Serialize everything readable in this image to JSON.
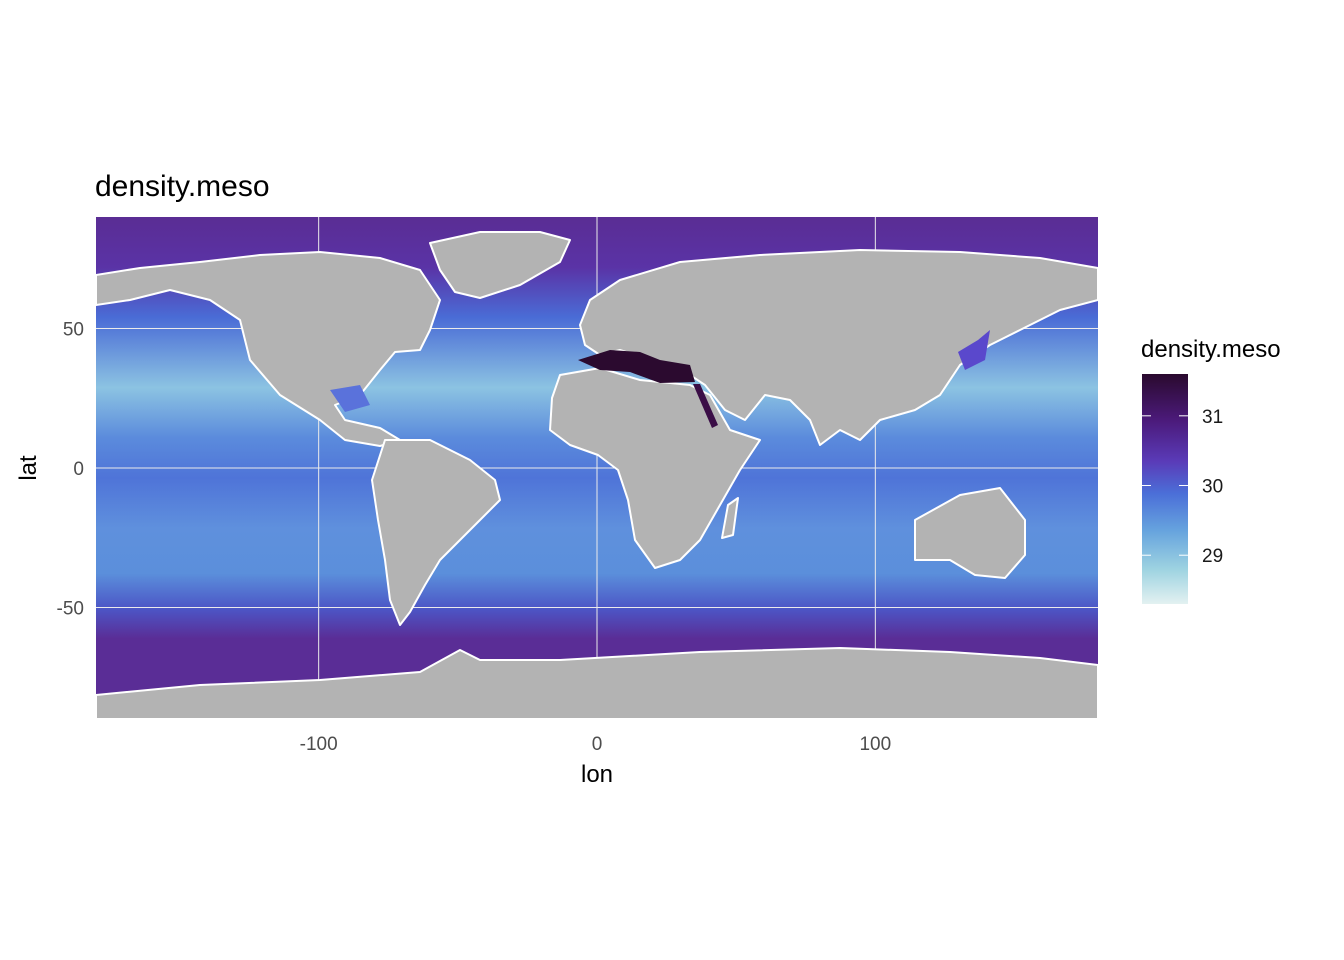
{
  "title": "density.meso",
  "x_axis": {
    "label": "lon",
    "ticks": [
      "-100",
      "0",
      "100"
    ],
    "tick_values": [
      -100,
      0,
      100
    ],
    "range": [
      -180,
      180
    ]
  },
  "y_axis": {
    "label": "lat",
    "ticks": [
      "50",
      "0",
      "-50"
    ],
    "tick_values": [
      50,
      0,
      -50
    ],
    "range": [
      -90,
      90
    ]
  },
  "legend": {
    "title": "density.meso",
    "ticks": [
      "31",
      "30",
      "29"
    ],
    "tick_values": [
      31,
      30,
      29
    ],
    "range": [
      28.3,
      31.6
    ],
    "colors": [
      "#e3f1f1",
      "#9ed3e1",
      "#66a3de",
      "#4b6fd8",
      "#5a3bb8",
      "#4b1a7a",
      "#2a0a2e"
    ]
  },
  "land_color": "#b3b3b3",
  "grid_color": "#ebebeb",
  "chart_data": {
    "type": "heatmap",
    "title": "density.meso",
    "xlabel": "lon",
    "ylabel": "lat",
    "xlim": [
      -180,
      180
    ],
    "ylim": [
      -90,
      90
    ],
    "value_range": [
      28.3,
      31.6
    ],
    "regions": [
      {
        "name": "Arctic Ocean",
        "value": 30.5
      },
      {
        "name": "North Atlantic subtropical gyre",
        "value": 29.0
      },
      {
        "name": "North Pacific subtropical gyre",
        "value": 29.0
      },
      {
        "name": "Equatorial band",
        "value": 29.8
      },
      {
        "name": "South subtropical band",
        "value": 29.3
      },
      {
        "name": "Southern Ocean",
        "value": 30.4
      },
      {
        "name": "Mediterranean Sea",
        "value": 31.5
      },
      {
        "name": "Red Sea",
        "value": 31.4
      },
      {
        "name": "Sea of Japan",
        "value": 30.1
      },
      {
        "name": "Gulf of Mexico",
        "value": 29.5
      }
    ]
  }
}
